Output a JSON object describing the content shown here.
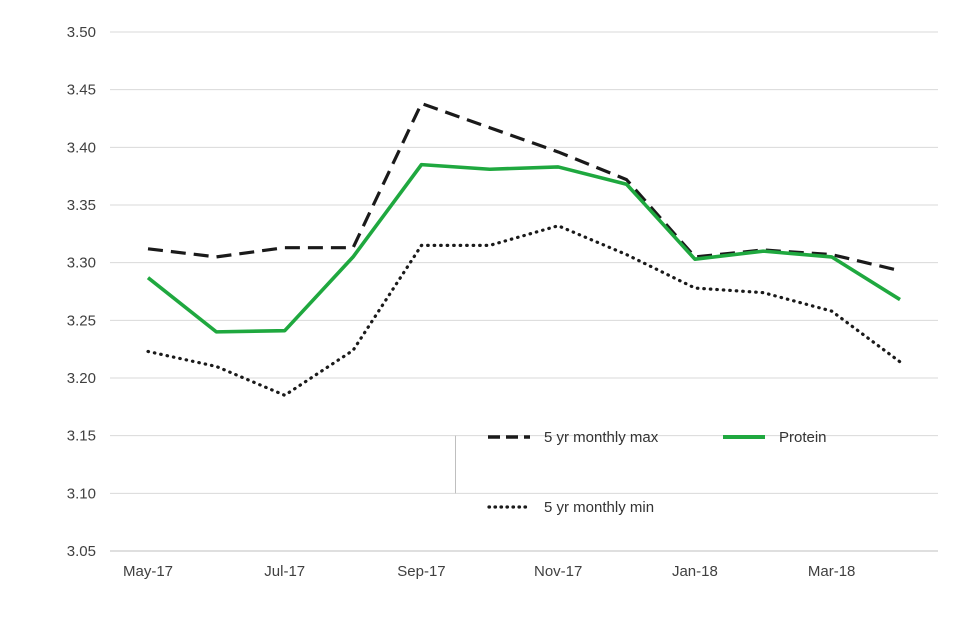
{
  "chart_data": {
    "type": "line",
    "x": [
      "May-17",
      "Jun-17",
      "Jul-17",
      "Aug-17",
      "Sep-17",
      "Oct-17",
      "Nov-17",
      "Dec-17",
      "Jan-18",
      "Feb-18",
      "Mar-18",
      "Apr-18"
    ],
    "x_tick_labels": [
      "May-17",
      "Jul-17",
      "Sep-17",
      "Nov-17",
      "Jan-18",
      "Mar-18"
    ],
    "series": [
      {
        "name": "5 yr monthly max",
        "style": "dashed",
        "color": "#1a1a1a",
        "values": [
          3.312,
          3.305,
          3.313,
          3.313,
          3.438,
          3.417,
          3.396,
          3.372,
          3.305,
          3.311,
          3.307,
          3.293
        ]
      },
      {
        "name": "5 yr monthly min",
        "style": "dotted",
        "color": "#1a1a1a",
        "values": [
          3.223,
          3.21,
          3.185,
          3.224,
          3.315,
          3.315,
          3.332,
          3.307,
          3.278,
          3.274,
          3.258,
          3.214
        ]
      },
      {
        "name": "Protein",
        "style": "solid",
        "color": "#1fa83f",
        "values": [
          3.287,
          3.24,
          3.241,
          3.305,
          3.385,
          3.381,
          3.383,
          3.368,
          3.303,
          3.31,
          3.305,
          3.268
        ]
      }
    ],
    "title": "",
    "xlabel": "",
    "ylabel": "",
    "ylim": [
      3.05,
      3.5
    ],
    "ytick_step": 0.05,
    "y_tick_labels": [
      "3.05",
      "3.10",
      "3.15",
      "3.20",
      "3.25",
      "3.30",
      "3.35",
      "3.40",
      "3.45",
      "3.50"
    ],
    "grid": true,
    "legend_position": "inside-bottom-center"
  },
  "legend": {
    "items": [
      {
        "label": "5 yr monthly max"
      },
      {
        "label": "Protein"
      },
      {
        "label": "5 yr monthly min"
      }
    ]
  },
  "colors": {
    "protein": "#1fa83f",
    "line_black": "#1a1a1a",
    "grid": "#d9d9d9",
    "axis": "#bfbfbf",
    "tick_text": "#404040",
    "background": "#ffffff"
  }
}
